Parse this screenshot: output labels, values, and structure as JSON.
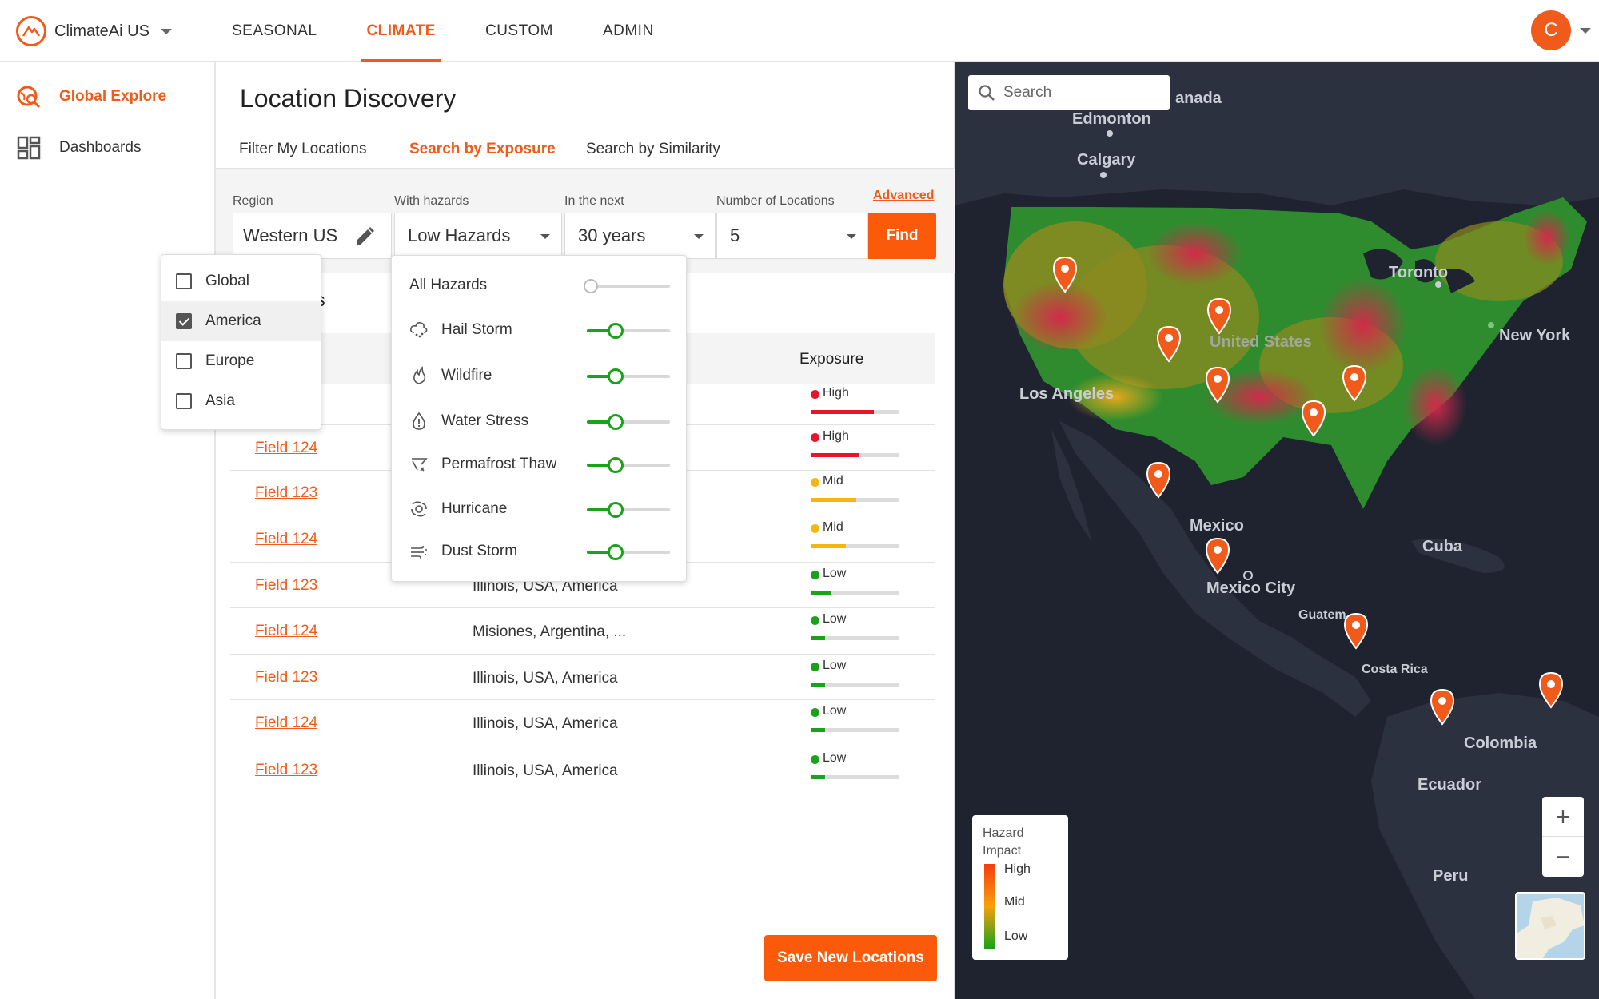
{
  "app": {
    "name": "ClimateAi US",
    "avatar_initial": "C",
    "accent": "#f05a1a"
  },
  "topnav": {
    "items": [
      "SEASONAL",
      "CLIMATE",
      "CUSTOM",
      "ADMIN"
    ],
    "active": "CLIMATE"
  },
  "sidebar": {
    "items": [
      {
        "label": "Global Explore",
        "icon": "globe-search-icon",
        "active": true
      },
      {
        "label": "Dashboards",
        "icon": "dashboard-grid-icon",
        "active": false
      }
    ]
  },
  "page": {
    "title": "Location Discovery",
    "tabs": [
      "Filter My Locations",
      "Search by Exposure",
      "Search by Similarity"
    ],
    "active_tab": "Search by Exposure"
  },
  "filters": {
    "region_label": "Region",
    "region_value": "Western US",
    "hazards_label": "With hazards",
    "hazards_value": "Low Hazards",
    "period_label": "In the next",
    "period_value": "30 years",
    "count_label": "Number of Locations",
    "count_value": "5",
    "find_label": "Find",
    "advanced_label": "Advanced"
  },
  "region_dropdown": [
    {
      "label": "Global",
      "checked": false
    },
    {
      "label": "America",
      "checked": true
    },
    {
      "label": "Europe",
      "checked": false
    },
    {
      "label": "Asia",
      "checked": false
    }
  ],
  "hazards_dropdown": [
    {
      "label": "All Hazards",
      "icon": "none",
      "level": 0
    },
    {
      "label": "Hail Storm",
      "icon": "hail-storm-icon",
      "level": 0.35
    },
    {
      "label": "Wildfire",
      "icon": "wildfire-icon",
      "level": 0.35
    },
    {
      "label": "Water Stress",
      "icon": "water-stress-icon",
      "level": 0.35
    },
    {
      "label": "Permafrost Thaw",
      "icon": "permafrost-thaw-icon",
      "level": 0.35
    },
    {
      "label": "Hurricane",
      "icon": "hurricane-icon",
      "level": 0.35
    },
    {
      "label": "Dust Storm",
      "icon": "dust-storm-icon",
      "level": 0.35
    }
  ],
  "results": {
    "title_visible": "tions",
    "exposure_header": "Exposure",
    "rows": [
      {
        "field": "",
        "location": "",
        "level": "High",
        "color": "#e8142a",
        "fill": 0.72
      },
      {
        "field": "Field 124",
        "location": "",
        "level": "High",
        "color": "#e8142a",
        "fill": 0.55
      },
      {
        "field": "Field 123",
        "location": "",
        "level": "Mid",
        "color": "#f5b70f",
        "fill": 0.52
      },
      {
        "field": "Field 124",
        "location": ",",
        "level": "Mid",
        "color": "#f5b70f",
        "fill": 0.4
      },
      {
        "field": "Field 123",
        "location": "Illinois, USA, America",
        "level": "Low",
        "color": "#1aa31a",
        "fill": 0.24
      },
      {
        "field": "Field 124",
        "location": "Misiones, Argentina, ...",
        "level": "Low",
        "color": "#1aa31a",
        "fill": 0.16
      },
      {
        "field": "Field 123",
        "location": "Illinois, USA, America",
        "level": "Low",
        "color": "#1aa31a",
        "fill": 0.16
      },
      {
        "field": "Field 124",
        "location": "Illinois, USA, America",
        "level": "Low",
        "color": "#1aa31a",
        "fill": 0.16
      },
      {
        "field": "Field 123",
        "location": "Illinois, USA, America",
        "level": "Low",
        "color": "#1aa31a",
        "fill": 0.16
      }
    ],
    "save_label": "Save New Locations"
  },
  "map": {
    "search_placeholder": "Search",
    "places": [
      "anada",
      "Edmonton",
      "Calgary",
      "Toronto",
      "New York",
      "United States",
      "Los Angeles",
      "Mexico",
      "Mexico City",
      "Cuba",
      "Guatem",
      "Costa Rica",
      "Colombia",
      "Ecuador",
      "Peru"
    ],
    "legend": {
      "title": "Hazard Impact",
      "high": "High",
      "mid": "Mid",
      "low": "Low"
    },
    "zoom_in": "+",
    "zoom_out": "−"
  }
}
